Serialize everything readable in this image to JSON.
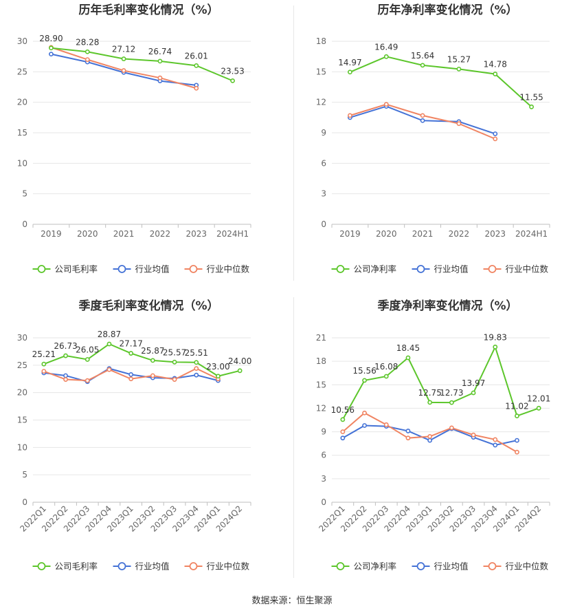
{
  "source_text": "数据来源：恒生聚源",
  "colors": {
    "company": "#5cc62b",
    "avg": "#4472d6",
    "median": "#f08462",
    "grid": "#e6e6e6",
    "axis": "#bfbfbf",
    "tick": "#666666",
    "title": "#333333"
  },
  "chart_data": [
    {
      "type": "line",
      "title": "历年毛利率变化情况（%）",
      "categories": [
        "2019",
        "2020",
        "2021",
        "2022",
        "2023",
        "2024H1"
      ],
      "ylim": [
        0,
        30
      ],
      "yticks": [
        "0",
        "5",
        "10",
        "15",
        "20",
        "25",
        "30"
      ],
      "rotate_labels": false,
      "legend_position": "bottom",
      "series": [
        {
          "name": "公司毛利率",
          "role": "company",
          "values": [
            28.9,
            28.28,
            27.12,
            26.74,
            26.01,
            23.53
          ],
          "labels": [
            "28.90",
            "28.28",
            "27.12",
            "26.74",
            "26.01",
            "23.53"
          ]
        },
        {
          "name": "行业均值",
          "role": "avg",
          "values": [
            27.9,
            26.6,
            24.9,
            23.5,
            22.8,
            null
          ]
        },
        {
          "name": "行业中位数",
          "role": "median",
          "values": [
            29.0,
            27.0,
            25.2,
            24.0,
            22.3,
            null
          ]
        }
      ]
    },
    {
      "type": "line",
      "title": "历年净利率变化情况（%）",
      "categories": [
        "2019",
        "2020",
        "2021",
        "2022",
        "2023",
        "2024H1"
      ],
      "ylim": [
        0,
        18
      ],
      "yticks": [
        "0",
        "3",
        "6",
        "9",
        "12",
        "15",
        "18"
      ],
      "rotate_labels": false,
      "legend_position": "bottom",
      "series": [
        {
          "name": "公司净利率",
          "role": "company",
          "values": [
            14.97,
            16.49,
            15.64,
            15.27,
            14.78,
            11.55
          ],
          "labels": [
            "14.97",
            "16.49",
            "15.64",
            "15.27",
            "14.78",
            "11.55"
          ]
        },
        {
          "name": "行业均值",
          "role": "avg",
          "values": [
            10.5,
            11.6,
            10.2,
            10.1,
            8.9,
            null
          ]
        },
        {
          "name": "行业中位数",
          "role": "median",
          "values": [
            10.7,
            11.8,
            10.7,
            9.9,
            8.4,
            null
          ]
        }
      ]
    },
    {
      "type": "line",
      "title": "季度毛利率变化情况（%）",
      "categories": [
        "2022Q1",
        "2022Q2",
        "2022Q3",
        "2022Q4",
        "2023Q1",
        "2023Q2",
        "2023Q3",
        "2023Q4",
        "2024Q1",
        "2024Q2"
      ],
      "ylim": [
        0,
        30
      ],
      "yticks": [
        "0",
        "5",
        "10",
        "15",
        "20",
        "25",
        "30"
      ],
      "rotate_labels": true,
      "legend_position": "bottom",
      "series": [
        {
          "name": "公司毛利率",
          "role": "company",
          "values": [
            25.21,
            26.73,
            26.05,
            28.87,
            27.17,
            25.87,
            25.57,
            25.51,
            23.0,
            24.0
          ],
          "labels": [
            "25.21",
            "26.73",
            "26.05",
            "28.87",
            "27.17",
            "25.87",
            "25.57",
            "25.51",
            "23.00",
            "24.00"
          ]
        },
        {
          "name": "行业均值",
          "role": "avg",
          "values": [
            23.6,
            23.1,
            22.0,
            24.4,
            23.3,
            22.7,
            22.6,
            23.2,
            22.2,
            null
          ]
        },
        {
          "name": "行业中位数",
          "role": "median",
          "values": [
            23.9,
            22.4,
            22.2,
            24.2,
            22.5,
            23.1,
            22.4,
            24.4,
            22.5,
            null
          ]
        }
      ]
    },
    {
      "type": "line",
      "title": "季度净利率变化情况（%）",
      "categories": [
        "2022Q1",
        "2022Q2",
        "2022Q3",
        "2022Q4",
        "2023Q1",
        "2023Q2",
        "2023Q3",
        "2023Q4",
        "2024Q1",
        "2024Q2"
      ],
      "ylim": [
        0,
        21
      ],
      "yticks": [
        "0",
        "3",
        "6",
        "9",
        "12",
        "15",
        "18",
        "21"
      ],
      "rotate_labels": true,
      "legend_position": "bottom",
      "series": [
        {
          "name": "公司净利率",
          "role": "company",
          "values": [
            10.56,
            15.56,
            16.08,
            18.45,
            12.75,
            12.73,
            13.97,
            19.83,
            11.02,
            12.01
          ],
          "labels": [
            "10.56",
            "15.56",
            "16.08",
            "18.45",
            "12.75",
            "12.73",
            "13.97",
            "19.83",
            "11.02",
            "12.01"
          ]
        },
        {
          "name": "行业均值",
          "role": "avg",
          "values": [
            8.2,
            9.8,
            9.7,
            9.1,
            7.9,
            9.4,
            8.3,
            7.3,
            7.9,
            null
          ]
        },
        {
          "name": "行业中位数",
          "role": "median",
          "values": [
            9.0,
            11.4,
            9.9,
            8.2,
            8.4,
            9.5,
            8.6,
            8.0,
            6.4,
            null
          ]
        }
      ]
    }
  ]
}
